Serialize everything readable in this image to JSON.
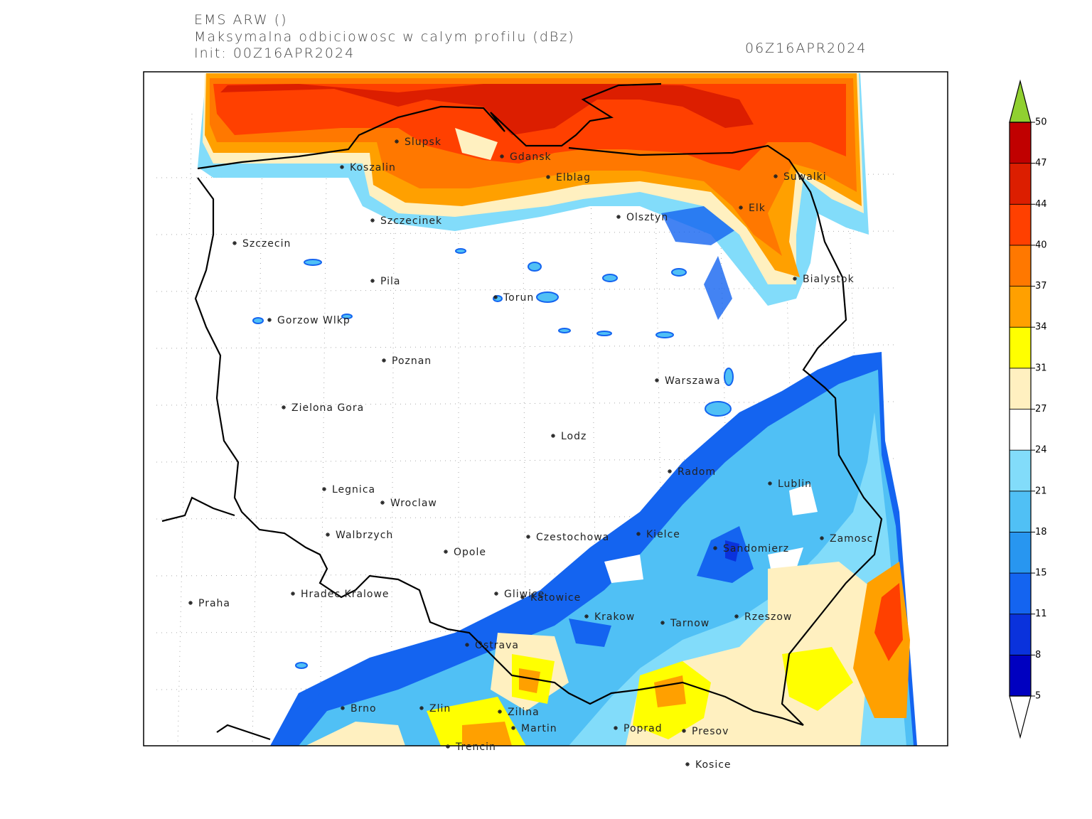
{
  "header": {
    "model": "EMS ARW ()",
    "field": "Maksymalna odbiciowosc w calym profilu (dBz)",
    "init": "Init: 00Z16APR2024",
    "valid": "06Z16APR2024"
  },
  "cities": [
    "Slupsk",
    "Gdansk",
    "Koszalin",
    "Elblag",
    "Suwalki",
    "Elk",
    "Olsztyn",
    "Szczecinek",
    "Szczecin",
    "Bialystok",
    "Pila",
    "Torun",
    "Gorzow Wlkp",
    "Poznan",
    "Warszawa",
    "Zielona Gora",
    "Lodz",
    "Radom",
    "Lublin",
    "Legnica",
    "Wroclaw",
    "Kielce",
    "Walbrzych",
    "Czestochowa",
    "Zamosc",
    "Sandomierz",
    "Opole",
    "Praha",
    "Hradec Kralowe",
    "Gliwice",
    "Katowice",
    "Krakow",
    "Rzeszow",
    "Tarnow",
    "Ostrava",
    "Brno",
    "Zlin",
    "Zilina",
    "Martin",
    "Poprad",
    "Presov",
    "Trencin",
    "Kosice"
  ],
  "colorbar": {
    "levels": [
      5,
      8,
      11,
      15,
      18,
      21,
      24,
      27,
      31,
      34,
      37,
      40,
      44,
      47,
      50
    ],
    "colors": [
      "#ffffff",
      "#0000c0",
      "#0a32dc",
      "#1464f0",
      "#2896f0",
      "#50c0f5",
      "#82dcfa",
      "#ffffff",
      "#fff0c0",
      "#ffff00",
      "#ffa000",
      "#ff7800",
      "#ff4000",
      "#dc1e00",
      "#c00000",
      "#90d030"
    ]
  }
}
